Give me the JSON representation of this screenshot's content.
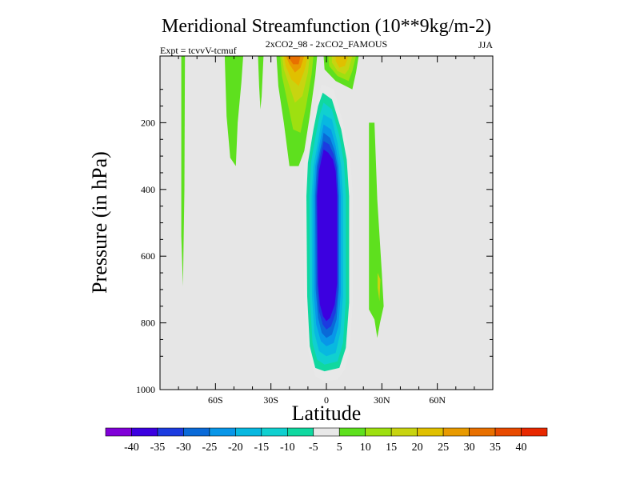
{
  "chart_data": {
    "type": "contour",
    "title": "Meridional Streamfunction (10**9kg/m-2)",
    "subtitle_left": "Expt = tcvvV-tcmuf",
    "subtitle_center": "2xCO2_98 - 2xCO2_FAMOUS",
    "subtitle_right": "JJA",
    "xlabel": "Latitude",
    "ylabel": "Pressure (in hPa)",
    "xlim": [
      -90,
      90
    ],
    "ylim": [
      1000,
      0
    ],
    "x_ticks": [
      {
        "value": -60,
        "label": "60S"
      },
      {
        "value": -30,
        "label": "30S"
      },
      {
        "value": 0,
        "label": "0"
      },
      {
        "value": 30,
        "label": "30N"
      },
      {
        "value": 60,
        "label": "60N"
      }
    ],
    "y_ticks": [
      {
        "value": 200,
        "label": "200"
      },
      {
        "value": 400,
        "label": "400"
      },
      {
        "value": 600,
        "label": "600"
      },
      {
        "value": 800,
        "label": "800"
      },
      {
        "value": 1000,
        "label": "1000"
      }
    ],
    "background_color": "#e6e6e6",
    "colorbar": {
      "levels": [
        -40,
        -35,
        -30,
        -25,
        -20,
        -15,
        -10,
        -5,
        5,
        10,
        15,
        20,
        25,
        30,
        35,
        40
      ],
      "level_labels": [
        "-40",
        "-35",
        "-30",
        "-25",
        "-20",
        "-15",
        "-10",
        "-5",
        "5",
        "10",
        "15",
        "20",
        "25",
        "30",
        "35",
        "40"
      ],
      "colors": [
        "#8000d8",
        "#3c00e0",
        "#1c3ce0",
        "#0a6ad8",
        "#0896e8",
        "#08b8e0",
        "#10d0d0",
        "#10d8a0",
        "#e8e8e8",
        "#5ee01e",
        "#9ee010",
        "#c8d410",
        "#e0c000",
        "#e89a00",
        "#e87000",
        "#e84a00",
        "#e82800"
      ]
    },
    "features": [
      {
        "name": "deep negative cell",
        "value_range": [
          -40,
          -20
        ],
        "lat_range": [
          -8,
          9
        ],
        "pressure_range": [
          90,
          970
        ]
      },
      {
        "name": "positive upper lobe north of equator",
        "value_range": [
          5,
          25
        ],
        "lat_range": [
          -1,
          12
        ],
        "pressure_range": [
          0,
          100
        ]
      },
      {
        "name": "positive upper lobe south of equator",
        "value_range": [
          5,
          30
        ],
        "lat_range": [
          -20,
          -6
        ],
        "pressure_range": [
          0,
          330
        ]
      },
      {
        "name": "weak positive band near 60S-50S",
        "value_range": [
          5,
          10
        ],
        "lat_range": [
          -54,
          -48
        ],
        "pressure_range": [
          0,
          320
        ]
      },
      {
        "name": "weak positive strip near 80S",
        "value_range": [
          5,
          10
        ],
        "lat_range": [
          -78,
          -77
        ],
        "pressure_range": [
          0,
          690
        ]
      },
      {
        "name": "weak positive band near 25N",
        "value_range": [
          5,
          15
        ],
        "lat_range": [
          23,
          30
        ],
        "pressure_range": [
          200,
          840
        ]
      }
    ]
  }
}
